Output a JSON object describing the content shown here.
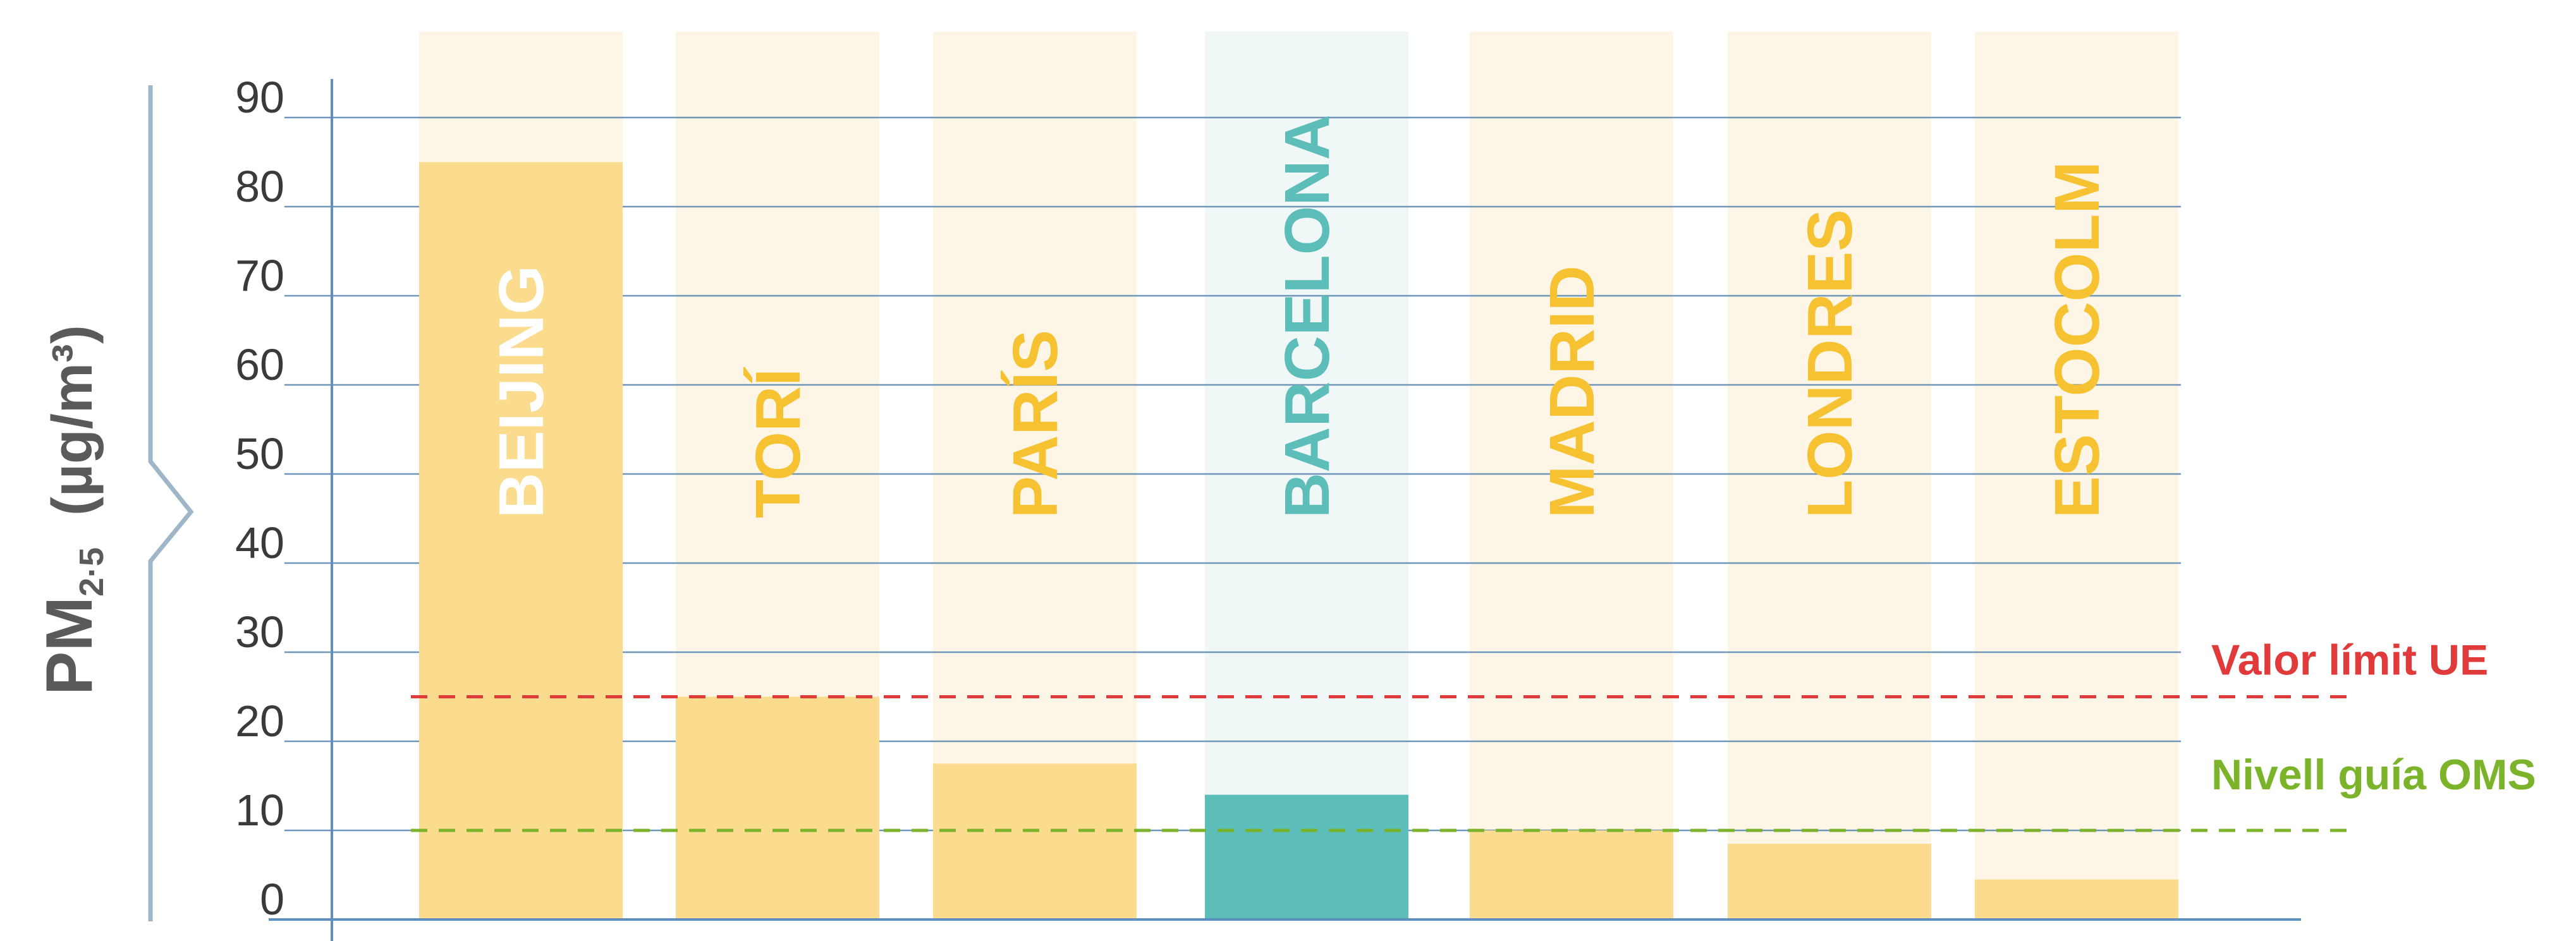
{
  "chart_data": {
    "type": "bar",
    "categories": [
      "BEIJING",
      "TORÍ",
      "PARÍS",
      "BARCELONA",
      "MADRID",
      "LONDRES",
      "ESTOCOLM"
    ],
    "values": [
      85,
      25,
      17.5,
      14,
      10,
      8.5,
      4.5
    ],
    "highlight": "BARCELONA",
    "ylim": [
      0,
      100
    ],
    "yticks": [
      0,
      10,
      20,
      30,
      40,
      50,
      60,
      70,
      80,
      90
    ],
    "ylabel": {
      "main": "PM",
      "sub": "2·5",
      "units": "(µg/m³)"
    },
    "grid": true,
    "reference_lines": [
      {
        "label": "Valor límit UE",
        "value": 25,
        "color": "#e03a3a"
      },
      {
        "label": "Nivell guía OMS",
        "value": 10,
        "color": "#7bb42a"
      }
    ],
    "colors": {
      "bar": "#fbdc8f",
      "bar_bg": "#fdf6e7",
      "label": "#f6c232",
      "label_on_bar": "#ffffff",
      "highlight_bar": "#5dbdb9",
      "highlight_bg": "#eff8f6",
      "highlight_label": "#5dbdb9",
      "grid": "#6f95b8",
      "axis": "#5f8fc0",
      "brace": "#9fb6c8"
    }
  }
}
